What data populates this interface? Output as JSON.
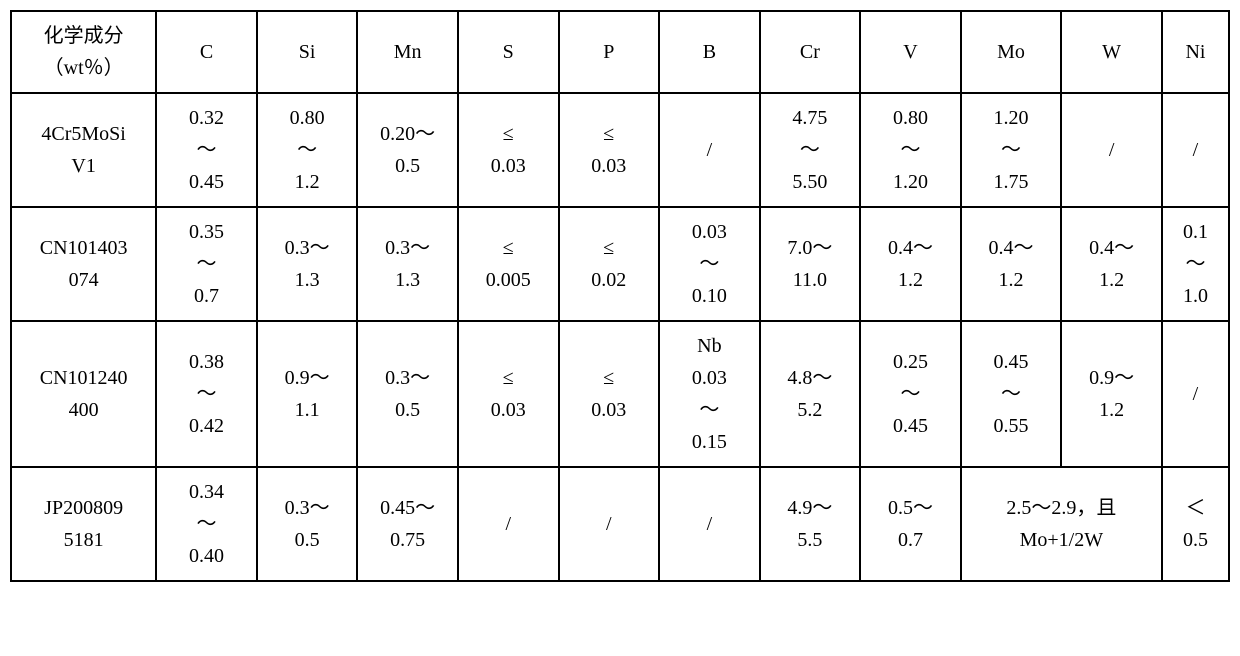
{
  "header": {
    "label": "化学成分\n（wt％）",
    "cols": [
      "C",
      "Si",
      "Mn",
      "S",
      "P",
      "B",
      "Cr",
      "V",
      "Mo",
      "W",
      "Ni"
    ]
  },
  "rows": [
    {
      "label": "4Cr5MoSi\nV1",
      "cells": [
        "0.32\n～\n0.45",
        "0.80\n～\n1.2",
        "0.20～\n0.5",
        "≤\n0.03",
        "≤\n0.03",
        "/",
        "4.75\n～\n5.50",
        "0.80\n～\n1.20",
        "1.20\n～\n1.75",
        "/",
        "/"
      ]
    },
    {
      "label": "CN101403\n074",
      "cells": [
        "0.35\n～\n0.7",
        "0.3～\n1.3",
        "0.3～\n1.3",
        "≤\n0.005",
        "≤\n0.02",
        "0.03\n～\n0.10",
        "7.0～\n11.0",
        "0.4～\n1.2",
        "0.4～\n1.2",
        "0.4～\n1.2",
        "0.1\n～\n1.0"
      ]
    },
    {
      "label": "CN101240\n400",
      "cells": [
        "0.38\n～\n0.42",
        "0.9～\n1.1",
        "0.3～\n0.5",
        "≤\n0.03",
        "≤\n0.03",
        "Nb\n0.03\n～\n0.15",
        "4.8～\n5.2",
        "0.25\n～\n0.45",
        "0.45\n～\n0.55",
        "0.9～\n1.2",
        "/"
      ]
    },
    {
      "label": "JP200809\n5181",
      "cells": [
        "0.34\n～\n0.40",
        "0.3～\n0.5",
        "0.45～\n0.75",
        "/",
        "/",
        "/",
        "4.9～\n5.5",
        "0.5～\n0.7",
        {
          "colspan": 2,
          "text": "2.5～2.9，且\nMo+1/2W"
        },
        "＜\n0.5"
      ]
    }
  ]
}
